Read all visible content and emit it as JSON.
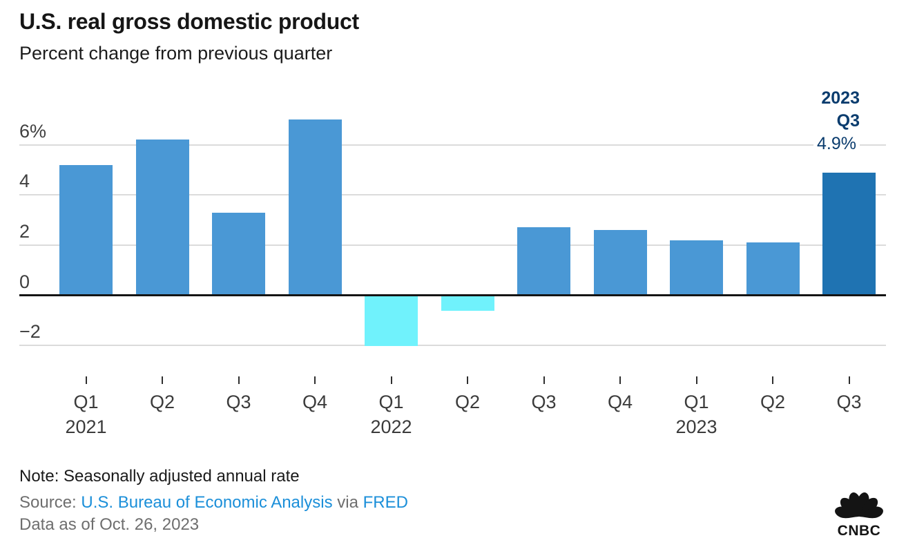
{
  "header": {
    "title": "U.S. real gross domestic product",
    "subtitle": "Percent change from previous quarter"
  },
  "chart_data": {
    "type": "bar",
    "title": "U.S. real gross domestic product",
    "subtitle": "Percent change from previous quarter",
    "categories": [
      "Q1 2021",
      "Q2 2021",
      "Q3 2021",
      "Q4 2021",
      "Q1 2022",
      "Q2 2022",
      "Q3 2022",
      "Q4 2022",
      "Q1 2023",
      "Q2 2023",
      "Q3 2023"
    ],
    "values": [
      5.2,
      6.2,
      3.3,
      7.0,
      -2.0,
      -0.6,
      2.7,
      2.6,
      2.2,
      2.1,
      4.9
    ],
    "x_ticks": [
      {
        "quarter": "Q1",
        "year": "2021"
      },
      {
        "quarter": "Q2"
      },
      {
        "quarter": "Q3"
      },
      {
        "quarter": "Q4"
      },
      {
        "quarter": "Q1",
        "year": "2022"
      },
      {
        "quarter": "Q2"
      },
      {
        "quarter": "Q3"
      },
      {
        "quarter": "Q4"
      },
      {
        "quarter": "Q1",
        "year": "2023"
      },
      {
        "quarter": "Q2"
      },
      {
        "quarter": "Q3"
      }
    ],
    "y_ticks": [
      {
        "value": 6,
        "label": "6%"
      },
      {
        "value": 4,
        "label": "4"
      },
      {
        "value": 2,
        "label": "2"
      },
      {
        "value": 0,
        "label": "0"
      },
      {
        "value": -2,
        "label": "−2"
      }
    ],
    "ylim": [
      -2.9,
      7.4
    ],
    "grid": true,
    "legend": "none",
    "highlight_index": 10,
    "colors": {
      "positive": "#4a98d5",
      "negative": "#70f2fc",
      "highlight": "#1f73b2",
      "gridline": "#dbdbdb",
      "zeroline": "#141414"
    }
  },
  "annotation": {
    "year": "2023",
    "quarter": "Q3",
    "value": "4.9%",
    "color": "#0a3c6e"
  },
  "footer": {
    "note": "Note: Seasonally adjusted annual rate",
    "source_prefix": "Source: ",
    "source_link": "U.S. Bureau of Economic Analysis",
    "source_via": " via ",
    "fred_link": "FRED",
    "data_as_of": "Data as of Oct. 26, 2023"
  },
  "logo": {
    "text": "CNBC"
  }
}
